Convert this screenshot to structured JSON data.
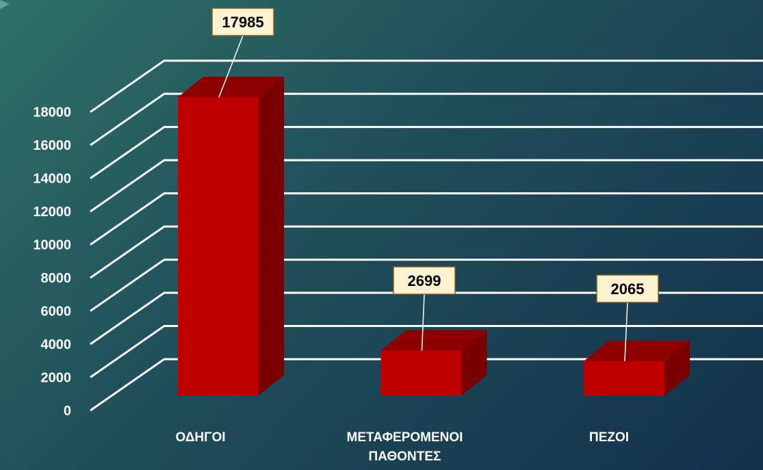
{
  "chart_data": {
    "type": "bar3d",
    "categories": [
      "ΟΔΗΓΟΙ",
      "ΜΕΤΑΦΕΡΟΜΕΝΟΙ ΠΑΘΟΝΤΕΣ",
      "ΠΕΖΟΙ"
    ],
    "values": [
      17985,
      2699,
      2065
    ],
    "color": "#c00000",
    "ylim": [
      0,
      18000
    ],
    "yticks": [
      0,
      2000,
      4000,
      6000,
      8000,
      10000,
      12000,
      14000,
      16000,
      18000
    ],
    "grid": true,
    "data_labels": true
  }
}
